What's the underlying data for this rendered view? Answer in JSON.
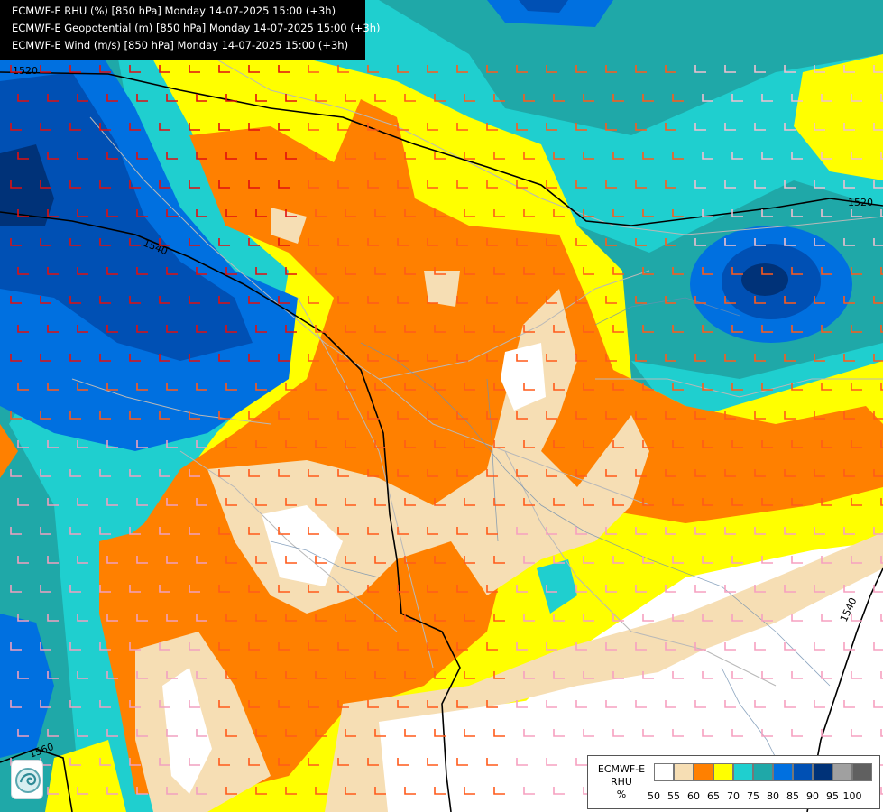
{
  "titles": [
    "ECMWF-E RHU (%) [850 hPa] Monday 14-07-2025 15:00 (+3h)",
    "ECMWF-E Geopotential (m) [850 hPa] Monday 14-07-2025 15:00 (+3h)",
    "ECMWF-E Wind (m/s) [850 hPa] Monday 14-07-2025 15:00 (+3h)"
  ],
  "contour_labels": [
    "1520",
    "1540",
    "1520",
    "1540",
    "1560"
  ],
  "legend": {
    "model": "ECMWF-E",
    "variable": "RHU",
    "unit": "%",
    "ticks": [
      "50",
      "55",
      "60",
      "65",
      "70",
      "75",
      "80",
      "85",
      "90",
      "95",
      "100"
    ],
    "colors": [
      "#ffffff",
      "#f6deb4",
      "#ff8000",
      "#ffff00",
      "#1fcfcf",
      "#1fa8a8",
      "#0070e0",
      "#0050b4",
      "#003278",
      "#a0a0a0",
      "#606060"
    ]
  },
  "logo_icon": "wave-logo-icon"
}
